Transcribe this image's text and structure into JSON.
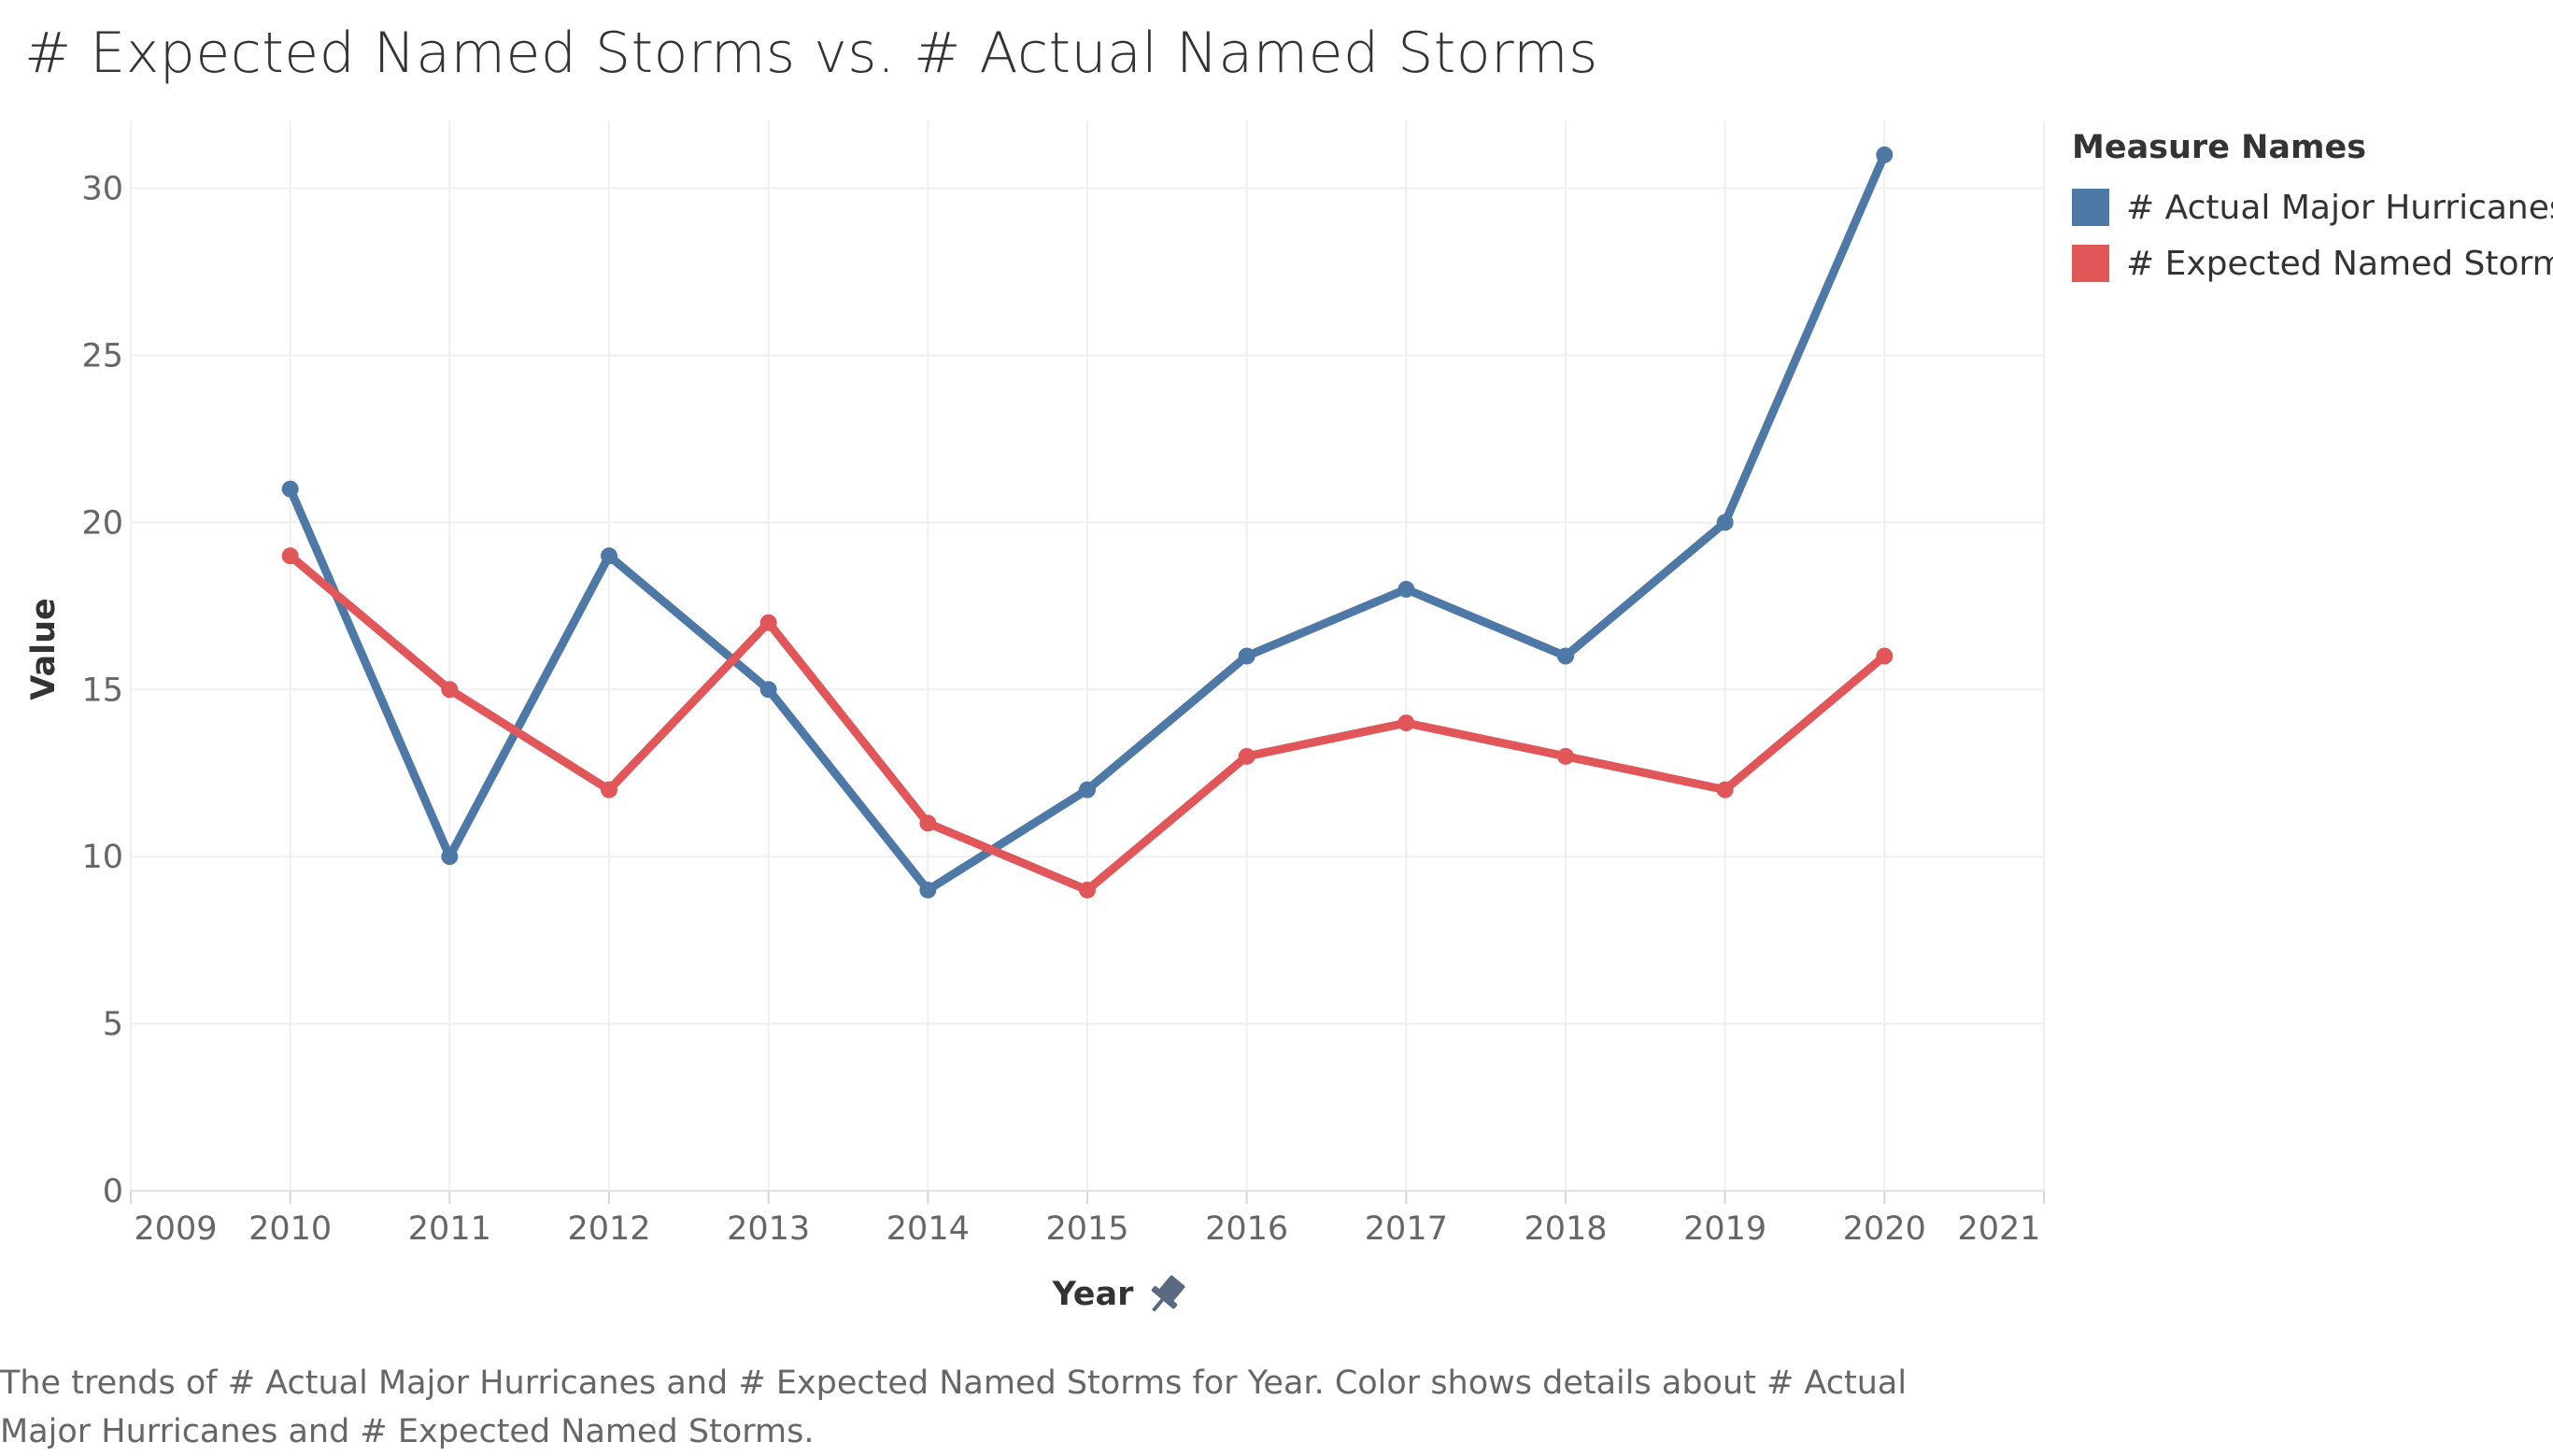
{
  "chart_data": {
    "type": "line",
    "title": "# Expected Named Storms vs. # Actual Named Storms",
    "xlabel": "Year",
    "ylabel": "Value",
    "x": [
      2010,
      2011,
      2012,
      2013,
      2014,
      2015,
      2016,
      2017,
      2018,
      2019,
      2020
    ],
    "xlim": [
      2009,
      2021
    ],
    "x_ticks": [
      "2009",
      "2010",
      "2011",
      "2012",
      "2013",
      "2014",
      "2015",
      "2016",
      "2017",
      "2018",
      "2019",
      "2020",
      "2021"
    ],
    "ylim": [
      0,
      32
    ],
    "y_ticks": [
      "0",
      "5",
      "10",
      "15",
      "20",
      "25",
      "30"
    ],
    "grid": true,
    "legend_title": "Measure Names",
    "legend_position": "right",
    "series": [
      {
        "name": "# Actual Major Hurricanes",
        "color": "#4e79a7",
        "values": [
          21,
          10,
          19,
          15,
          9,
          12,
          16,
          18,
          16,
          20,
          31
        ]
      },
      {
        "name": "# Expected Named Storms",
        "color": "#e15759",
        "values": [
          19,
          15,
          12,
          17,
          11,
          9,
          13,
          14,
          13,
          12,
          16
        ]
      }
    ],
    "caption": "The trends of # Actual Major Hurricanes and # Expected Named Storms for Year.  Color shows details about # Actual Major Hurricanes and # Expected Named Storms.",
    "icons": {
      "xaxis_pin": "pin-icon"
    }
  }
}
